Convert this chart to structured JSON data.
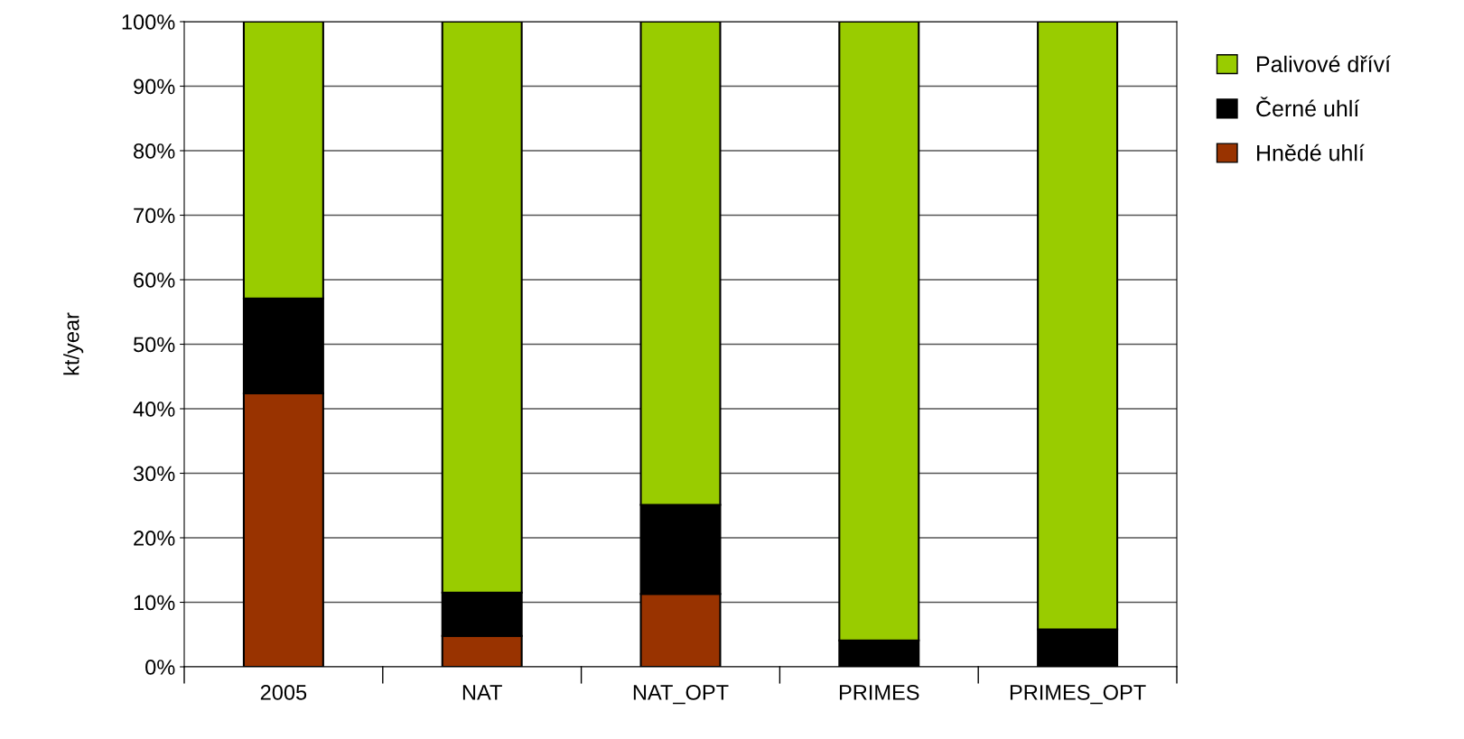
{
  "chart_data": {
    "type": "bar",
    "stacked": true,
    "ylabel": "kt/year",
    "categories": [
      "2005",
      "NAT",
      "NAT_OPT",
      "PRIMES",
      "PRIMES_OPT"
    ],
    "series": [
      {
        "name": "Hnědé uhlí",
        "color": "#993300",
        "values": [
          42.4,
          4.8,
          11.3,
          0,
          0
        ]
      },
      {
        "name": "Černé uhlí",
        "color": "#000000",
        "values": [
          14.7,
          6.7,
          13.8,
          4.1,
          5.8
        ]
      },
      {
        "name": "Palivové dříví",
        "color": "#99cc00",
        "values": [
          42.9,
          88.5,
          74.9,
          95.9,
          94.2
        ]
      }
    ],
    "ylim": [
      0,
      100
    ],
    "yticks": [
      {
        "value": 0,
        "label": "0%"
      },
      {
        "value": 10,
        "label": "10%"
      },
      {
        "value": 20,
        "label": "20%"
      },
      {
        "value": 30,
        "label": "30%"
      },
      {
        "value": 40,
        "label": "40%"
      },
      {
        "value": 50,
        "label": "50%"
      },
      {
        "value": 60,
        "label": "60%"
      },
      {
        "value": 70,
        "label": "70%"
      },
      {
        "value": 80,
        "label": "80%"
      },
      {
        "value": 90,
        "label": "90%"
      },
      {
        "value": 100,
        "label": "100%"
      }
    ],
    "grid": "y",
    "legend": "right"
  }
}
